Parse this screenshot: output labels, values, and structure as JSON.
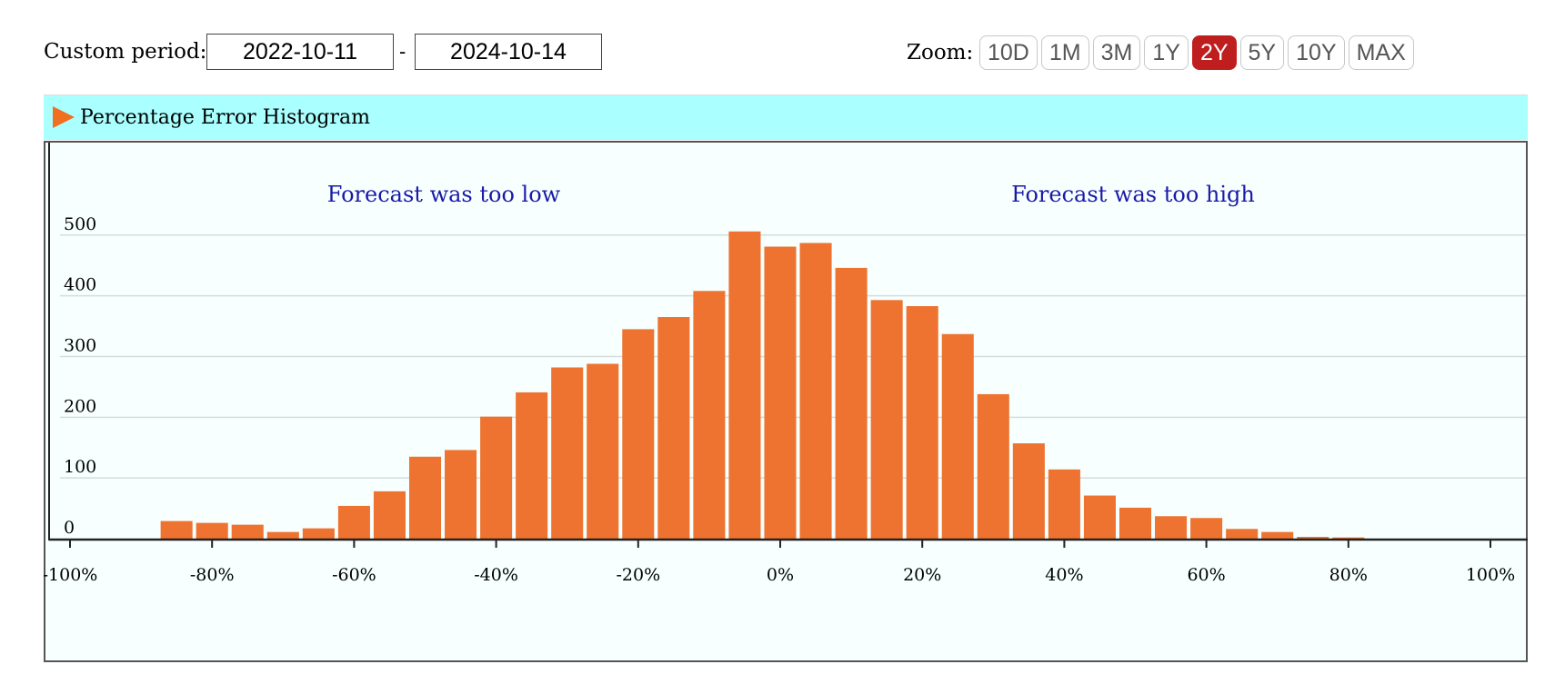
{
  "controls": {
    "custom_period_label": "Custom period:",
    "start_date": "2022-10-11",
    "separator": "-",
    "end_date": "2024-10-14",
    "zoom_label": "Zoom:",
    "zoom_options": [
      "10D",
      "1M",
      "3M",
      "1Y",
      "2Y",
      "5Y",
      "10Y",
      "MAX"
    ],
    "zoom_selected": "2Y",
    "active_color": "#bf1e1e"
  },
  "panel": {
    "title": "Percentage Error Histogram",
    "arrow_icon": "triangle-right-icon",
    "header_color": "#aaffff",
    "arrow_color": "#f07020"
  },
  "chart_data": {
    "type": "bar",
    "title": "Percentage Error Histogram",
    "xlabel": "",
    "ylabel": "",
    "bar_color": "#ee7330",
    "bin_width": 5,
    "x_range": [
      -100,
      100
    ],
    "ylim": [
      0,
      600
    ],
    "x_ticks": [
      -100,
      -80,
      -60,
      -40,
      -20,
      0,
      20,
      40,
      60,
      80,
      100
    ],
    "x_tick_labels": [
      "-100%",
      "-80%",
      "-60%",
      "-40%",
      "-20%",
      "0%",
      "20%",
      "40%",
      "60%",
      "80%",
      "100%"
    ],
    "y_ticks": [
      0,
      100,
      200,
      300,
      400,
      500
    ],
    "y_tick_labels": [
      "0",
      "100",
      "200",
      "300",
      "400",
      "500"
    ],
    "grid": true,
    "annotations": [
      "Forecast was too low",
      "Forecast was too high"
    ],
    "bins": [
      {
        "x": -85,
        "count": 29
      },
      {
        "x": -80,
        "count": 26
      },
      {
        "x": -75,
        "count": 23
      },
      {
        "x": -70,
        "count": 11
      },
      {
        "x": -65,
        "count": 17
      },
      {
        "x": -60,
        "count": 54
      },
      {
        "x": -55,
        "count": 78
      },
      {
        "x": -50,
        "count": 135
      },
      {
        "x": -45,
        "count": 146
      },
      {
        "x": -40,
        "count": 201
      },
      {
        "x": -35,
        "count": 241
      },
      {
        "x": -30,
        "count": 282
      },
      {
        "x": -25,
        "count": 288
      },
      {
        "x": -20,
        "count": 345
      },
      {
        "x": -15,
        "count": 365
      },
      {
        "x": -10,
        "count": 408
      },
      {
        "x": -5,
        "count": 506
      },
      {
        "x": 0,
        "count": 481
      },
      {
        "x": 5,
        "count": 487
      },
      {
        "x": 10,
        "count": 446
      },
      {
        "x": 15,
        "count": 393
      },
      {
        "x": 20,
        "count": 383
      },
      {
        "x": 25,
        "count": 337
      },
      {
        "x": 30,
        "count": 238
      },
      {
        "x": 35,
        "count": 157
      },
      {
        "x": 40,
        "count": 114
      },
      {
        "x": 45,
        "count": 71
      },
      {
        "x": 50,
        "count": 51
      },
      {
        "x": 55,
        "count": 37
      },
      {
        "x": 60,
        "count": 34
      },
      {
        "x": 65,
        "count": 16
      },
      {
        "x": 70,
        "count": 11
      },
      {
        "x": 75,
        "count": 3
      },
      {
        "x": 80,
        "count": 2
      }
    ]
  }
}
